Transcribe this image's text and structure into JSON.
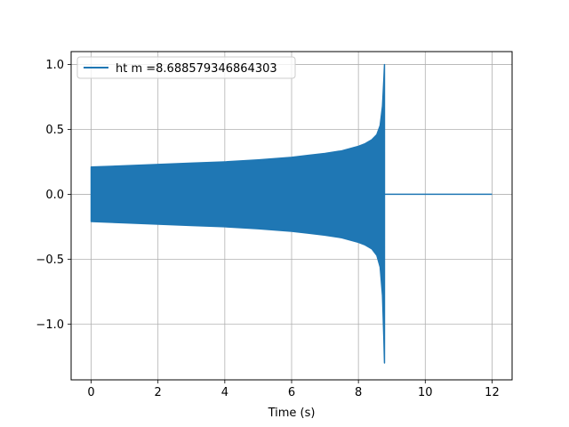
{
  "chart_data": {
    "type": "line",
    "title": "",
    "xlabel": "Time (s)",
    "ylabel": "",
    "xlim": [
      -0.6,
      12.6
    ],
    "ylim": [
      -1.43,
      1.1
    ],
    "grid": true,
    "legend_placement": "top-left",
    "x_ticks": [
      0,
      2,
      4,
      6,
      8,
      10,
      12
    ],
    "y_ticks": [
      1.0,
      0.5,
      0.0,
      -0.5,
      -1.0
    ],
    "x_tick_labels": [
      "0",
      "2",
      "4",
      "6",
      "8",
      "10",
      "12"
    ],
    "y_tick_labels": [
      "1.0",
      "0.5",
      "0.0",
      "−0.5",
      "−1.0"
    ],
    "series": [
      {
        "name": "ht m =8.688579346864303",
        "color": "#1f77b4",
        "envelope": {
          "t": [
            0,
            1,
            2,
            3,
            4,
            5,
            6,
            6.5,
            7,
            7.5,
            8,
            8.2,
            8.4,
            8.55,
            8.65,
            8.72,
            8.76,
            8.78
          ],
          "upper": [
            0.21,
            0.22,
            0.23,
            0.24,
            0.25,
            0.265,
            0.285,
            0.3,
            0.315,
            0.335,
            0.37,
            0.39,
            0.42,
            0.46,
            0.53,
            0.68,
            0.88,
            1.0
          ],
          "lower": [
            -0.21,
            -0.22,
            -0.23,
            -0.24,
            -0.25,
            -0.265,
            -0.285,
            -0.3,
            -0.315,
            -0.335,
            -0.37,
            -0.39,
            -0.42,
            -0.47,
            -0.56,
            -0.78,
            -1.1,
            -1.3
          ]
        },
        "post_merger": {
          "t_start": 8.78,
          "t_end": 12.0,
          "value": 0.0
        }
      }
    ]
  }
}
